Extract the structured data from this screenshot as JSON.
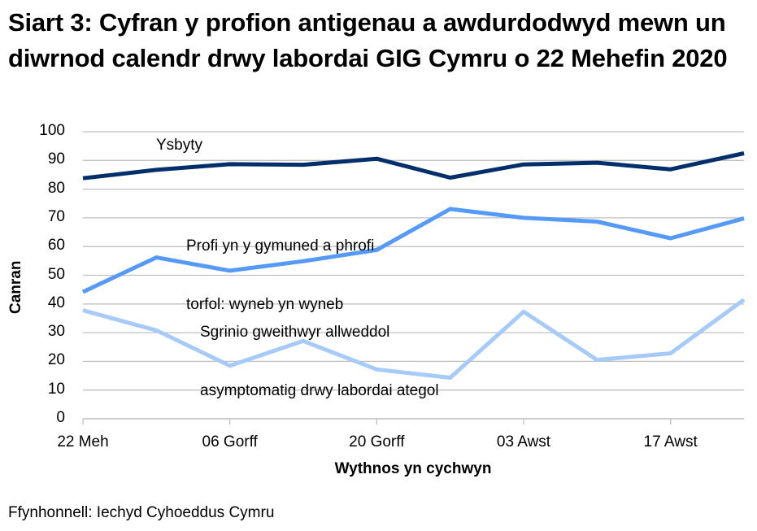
{
  "title": "Siart 3: Cyfran y profion antigenau a awdurdodwyd mewn un diwrnod calendr drwy labordai GIG Cymru o 22 Mehefin 2020",
  "source": "Ffynhonnell: Iechyd Cyhoeddus Cymru",
  "colors": {
    "ysbyty": "#002F6C",
    "profi": "#559AF8",
    "sgrinio": "#A6CAFA",
    "grid": "#BFBFBF"
  },
  "chart_data": {
    "type": "line",
    "title": "Siart 3: Cyfran y profion antigenau a awdurdodwyd mewn un diwrnod calendr drwy labordai GIG Cymru o 22 Mehefin 2020",
    "xlabel": "Wythnos yn cychwyn",
    "ylabel": "Canran",
    "ylim": [
      0,
      100
    ],
    "yticks": [
      0,
      10,
      20,
      30,
      40,
      50,
      60,
      70,
      80,
      90,
      100
    ],
    "x_tick_labels": [
      "22 Meh",
      "06 Gorff",
      "20 Gorff",
      "03 Awst",
      "17 Awst"
    ],
    "x": [
      "22 Meh",
      "29 Meh",
      "06 Gorff",
      "13 Gorff",
      "20 Gorff",
      "27 Gorff",
      "03 Awst",
      "10 Awst",
      "17 Awst",
      "24 Awst"
    ],
    "grid": true,
    "legend_position": "inline labels",
    "series": [
      {
        "name": "Ysbyty",
        "label_lines": [
          "Ysbyty"
        ],
        "values": [
          83.8,
          86.7,
          88.7,
          88.5,
          90.6,
          84.0,
          88.6,
          89.2,
          86.9,
          92.5
        ]
      },
      {
        "name": "Profi yn y gymuned a phrofi torfol: wyneb yn wyneb",
        "label_lines": [
          "Profi yn y gymuned a phrofi",
          "torfol: wyneb yn wyneb"
        ],
        "values": [
          44.2,
          56.2,
          51.6,
          54.9,
          58.8,
          73.1,
          70.0,
          68.7,
          62.9,
          69.8
        ]
      },
      {
        "name": "Sgrinio gweithwyr allweddol asymptomatig drwy labordai ategol",
        "label_lines": [
          "Sgrinio gweithwyr allweddol",
          "asymptomatig drwy labordai ategol"
        ],
        "values": [
          37.8,
          30.8,
          18.5,
          27.1,
          17.2,
          14.3,
          37.3,
          20.5,
          22.8,
          41.5
        ]
      }
    ]
  }
}
